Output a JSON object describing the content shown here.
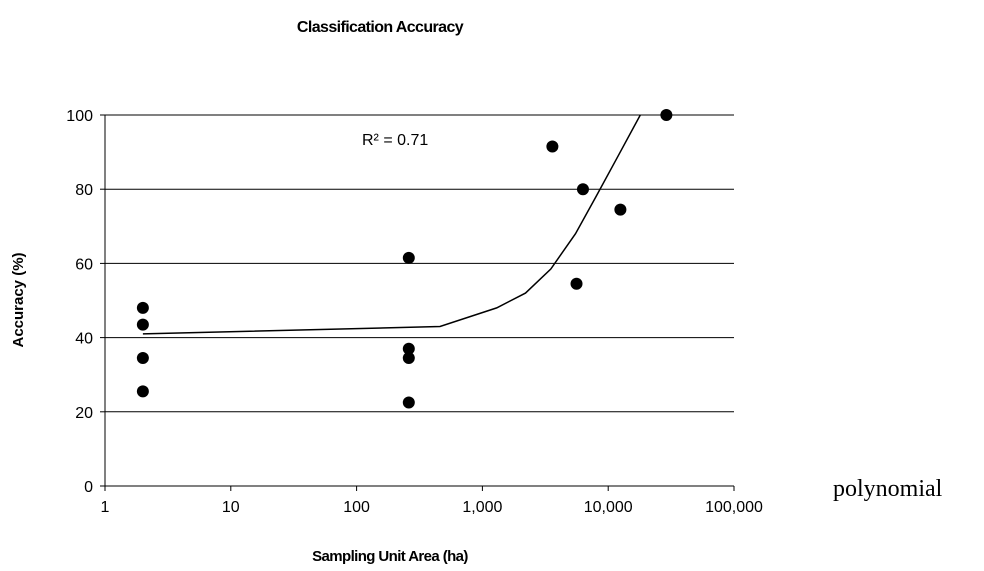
{
  "chart_data": {
    "type": "scatter",
    "title": "Classification Accuracy",
    "xlabel": "Sampling Unit Area (ha)",
    "ylabel": "Accuracy (%)",
    "x_scale": "log",
    "xlim": [
      1,
      100000
    ],
    "ylim": [
      0,
      100
    ],
    "x_ticks": [
      1,
      10,
      100,
      1000,
      10000,
      100000
    ],
    "x_tick_labels": [
      "1",
      "10",
      "100",
      "1,000",
      "10,000",
      "100,000"
    ],
    "y_ticks": [
      0,
      20,
      40,
      60,
      80,
      100
    ],
    "y_tick_labels": [
      "0",
      "20",
      "40",
      "60",
      "80",
      "100"
    ],
    "grid": "horizontal",
    "points": [
      {
        "x": 2,
        "y": 48
      },
      {
        "x": 2,
        "y": 43.5
      },
      {
        "x": 2,
        "y": 34.5
      },
      {
        "x": 2,
        "y": 25.5
      },
      {
        "x": 260,
        "y": 61.5
      },
      {
        "x": 260,
        "y": 37
      },
      {
        "x": 260,
        "y": 34.5
      },
      {
        "x": 260,
        "y": 22.5
      },
      {
        "x": 3600,
        "y": 91.5
      },
      {
        "x": 5600,
        "y": 54.5
      },
      {
        "x": 6300,
        "y": 80
      },
      {
        "x": 12500,
        "y": 74.5
      },
      {
        "x": 29000,
        "y": 100
      }
    ],
    "trendline": {
      "type": "polynomial",
      "points": [
        {
          "x": 2,
          "y": 41
        },
        {
          "x": 460,
          "y": 43
        },
        {
          "x": 1300,
          "y": 48
        },
        {
          "x": 2200,
          "y": 52
        },
        {
          "x": 3500,
          "y": 58.5
        },
        {
          "x": 5500,
          "y": 68
        },
        {
          "x": 8000,
          "y": 78
        },
        {
          "x": 12000,
          "y": 89
        },
        {
          "x": 18000,
          "y": 100
        }
      ]
    },
    "annotation": "R² = 0.71",
    "side_label": "polynomial"
  }
}
